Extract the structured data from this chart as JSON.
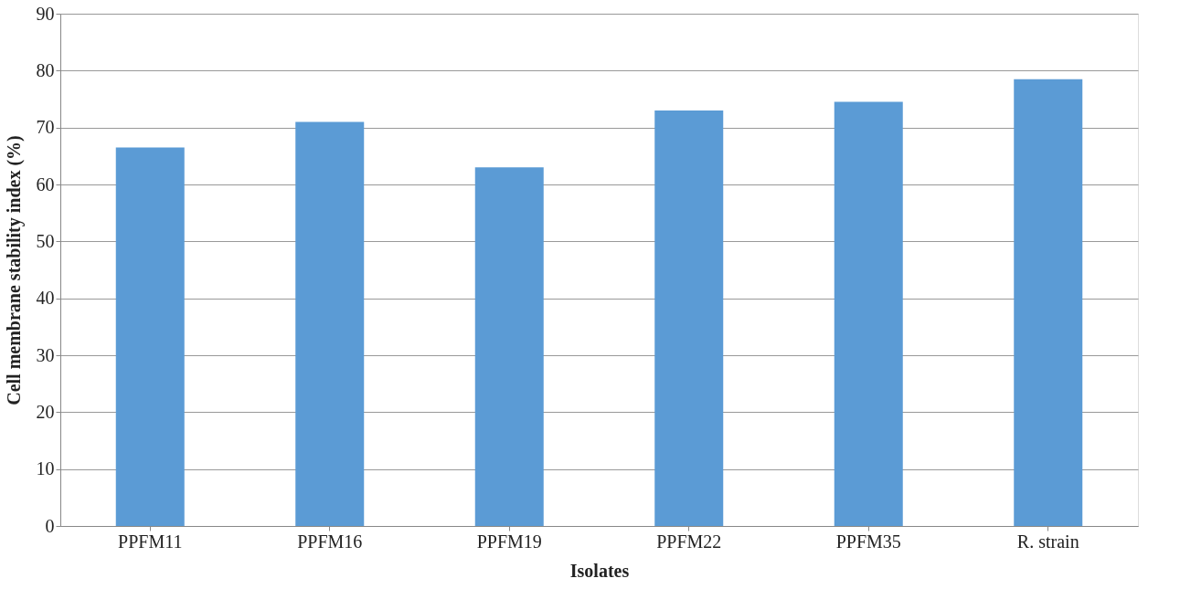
{
  "chart_data": {
    "type": "bar",
    "xlabel": "Isolates",
    "ylabel": "Cell membrane stability index (%)",
    "categories": [
      "PPFM11",
      "PPFM16",
      "PPFM19",
      "PPFM22",
      "PPFM35",
      "R. strain"
    ],
    "values": [
      66.5,
      71,
      63,
      73,
      74.5,
      78.5
    ],
    "color": "#5b9bd5",
    "ylim": [
      0,
      90
    ],
    "yticks": [
      0,
      10,
      20,
      30,
      40,
      50,
      60,
      70,
      80,
      90
    ],
    "grid": "y"
  }
}
